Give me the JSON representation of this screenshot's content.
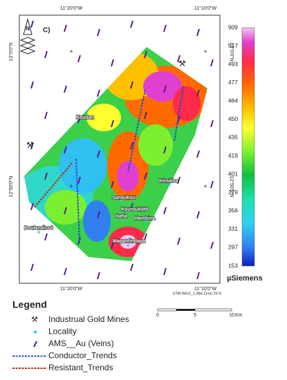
{
  "map": {
    "panel_label": "C)",
    "lon_labels": [
      "11°20'0\"W",
      "11°10'0\"W"
    ],
    "lat_labels": [
      "13°0'0\"N",
      "12°50'0\"N"
    ],
    "places": [
      "Koudan",
      "Kéniéba",
      "Sanoukou",
      "Kouroukôtô",
      "Hafia",
      "Hambina",
      "Boulandissô",
      "Maganfindaga"
    ],
    "projection": "UTM WGS_1,984 Zone 29 N"
  },
  "color_scale": {
    "labels": [
      "909",
      "517",
      "493",
      "477",
      "464",
      "450",
      "435",
      "419",
      "401",
      "379",
      "356",
      "331",
      "297",
      "153"
    ],
    "unit": "µSiemens"
  },
  "scale_bar": {
    "labels": [
      "0",
      "5",
      "10"
    ],
    "unit": "Km"
  },
  "legend": {
    "title": "Legend",
    "items": [
      "Industrual Gold Mines",
      "Locality",
      "AMS__Au (Veins)",
      "Conductor_Trends",
      "Resistant_Trends"
    ]
  }
}
